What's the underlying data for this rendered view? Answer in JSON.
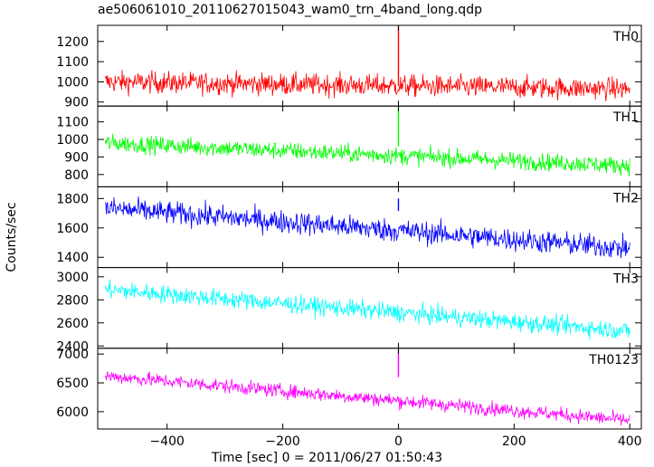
{
  "chart_data": {
    "type": "line",
    "title": "ae506061010_20110627015043_wam0_trn_4band_long.qdp",
    "xlabel": "Time [sec] 0 = 2011/06/27 01:50:43",
    "ylabel": "Counts/sec",
    "xlim": [
      -520,
      420
    ],
    "x_ticks": [
      -400,
      -200,
      0,
      200,
      400
    ],
    "grid": false,
    "panels": [
      {
        "name": "TH0",
        "color": "#ff0000",
        "ylim": [
          880,
          1280
        ],
        "yticks": [
          900,
          1000,
          1100,
          1200
        ],
        "start": 1000,
        "end": 965,
        "noise": 38,
        "x_range": [
          -507,
          400
        ],
        "spike": {
          "x": 0,
          "y": 1275
        }
      },
      {
        "name": "TH1",
        "color": "#00ff00",
        "ylim": [
          730,
          1190
        ],
        "yticks": [
          800,
          900,
          1000,
          1100
        ],
        "start": 980,
        "end": 850,
        "noise": 35,
        "x_range": [
          -507,
          400
        ],
        "spike": {
          "x": 0,
          "y": 1185
        }
      },
      {
        "name": "TH2",
        "color": "#0000ff",
        "ylim": [
          1330,
          1880
        ],
        "yticks": [
          1400,
          1600,
          1800
        ],
        "start": 1735,
        "end": 1460,
        "noise": 55,
        "x_range": [
          -507,
          400
        ],
        "spike": {
          "x": 0,
          "y": 1800
        }
      },
      {
        "name": "TH3",
        "color": "#00ffff",
        "ylim": [
          2380,
          3080
        ],
        "yticks": [
          2400,
          2600,
          2800,
          3000
        ],
        "start": 2890,
        "end": 2530,
        "noise": 55,
        "x_range": [
          -507,
          400
        ],
        "spike": null
      },
      {
        "name": "TH0123",
        "color": "#ff00ff",
        "ylim": [
          5700,
          7100
        ],
        "yticks": [
          6000,
          6500,
          7000
        ],
        "start": 6620,
        "end": 5850,
        "noise": 85,
        "x_range": [
          -507,
          400
        ],
        "spike": {
          "x": 0,
          "y": 7080
        }
      }
    ]
  }
}
